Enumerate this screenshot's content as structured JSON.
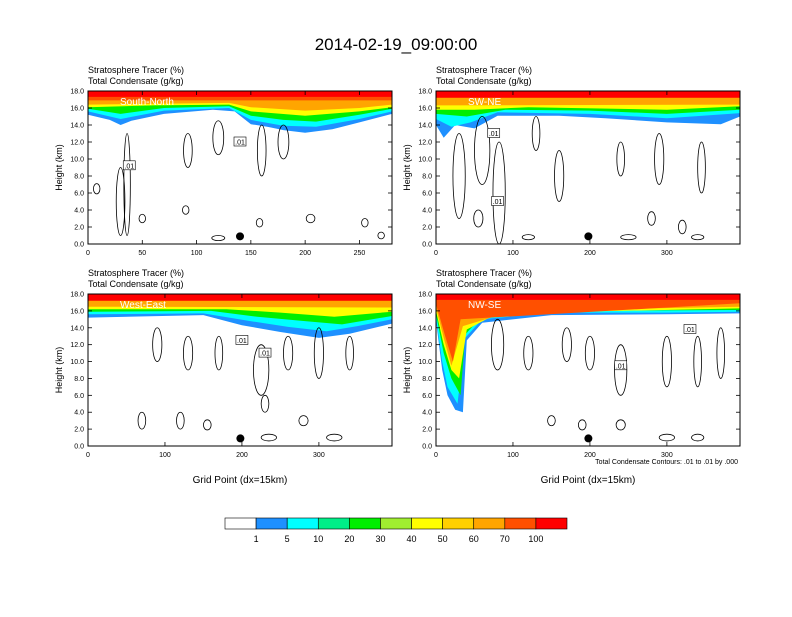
{
  "figure": {
    "title": "2014-02-19_09:00:00",
    "contour_note": "Total Condensate Contours: .01 to .01 by .000"
  },
  "colorbar": {
    "labels": [
      "1",
      "5",
      "10",
      "20",
      "30",
      "40",
      "50",
      "60",
      "70",
      "100"
    ],
    "colors": [
      "#ffffff",
      "#1e90ff",
      "#00ffff",
      "#00ee88",
      "#00ee00",
      "#a0ee30",
      "#ffff00",
      "#ffd000",
      "#ffa500",
      "#ff5000",
      "#ff0000"
    ]
  },
  "chart_data": [
    {
      "type": "heatmap",
      "panel_label": "South-North",
      "title_line1": "Stratosphere Tracer   (%)",
      "title_line2": "Total Condensate   (g/kg)",
      "ylabel": "Height (km)",
      "xlabel": "",
      "xlim": [
        0,
        280
      ],
      "ylim": [
        0,
        18
      ],
      "xticks": [
        "0",
        "50",
        "100",
        "150",
        "200",
        "250"
      ],
      "yticks": [
        "0.0",
        "2.0",
        "4.0",
        "6.0",
        "8.0",
        "10.0",
        "12.0",
        "14.0",
        "16.0",
        "18.0"
      ],
      "contour_labels": [
        ".01",
        ".01"
      ],
      "marker_x": 140
    },
    {
      "type": "heatmap",
      "panel_label": "SW-NE",
      "title_line1": "Stratosphere Tracer   (%)",
      "title_line2": "Total Condensate   (g/kg)",
      "ylabel": "Height (km)",
      "xlabel": "",
      "xlim": [
        0,
        395
      ],
      "ylim": [
        0,
        18
      ],
      "xticks": [
        "0",
        "100",
        "200",
        "300"
      ],
      "yticks": [
        "0.0",
        "2.0",
        "4.0",
        "6.0",
        "8.0",
        "10.0",
        "12.0",
        "14.0",
        "16.0",
        "18.0"
      ],
      "contour_labels": [
        ".01",
        ".01"
      ],
      "marker_x": 198
    },
    {
      "type": "heatmap",
      "panel_label": "West-East",
      "title_line1": "Stratosphere Tracer   (%)",
      "title_line2": "Total Condensate   (g/kg)",
      "ylabel": "Height (km)",
      "xlabel": "Grid Point (dx=15km)",
      "xlim": [
        0,
        395
      ],
      "ylim": [
        0,
        18
      ],
      "xticks": [
        "0",
        "100",
        "200",
        "300"
      ],
      "yticks": [
        "0.0",
        "2.0",
        "4.0",
        "6.0",
        "8.0",
        "10.0",
        "12.0",
        "14.0",
        "16.0",
        "18.0"
      ],
      "contour_labels": [
        ".01",
        ".01"
      ],
      "marker_x": 198
    },
    {
      "type": "heatmap",
      "panel_label": "NW-SE",
      "title_line1": "Stratosphere Tracer   (%)",
      "title_line2": "Total Condensate   (g/kg)",
      "ylabel": "Height (km)",
      "xlabel": "Grid Point (dx=15km)",
      "xlim": [
        0,
        395
      ],
      "ylim": [
        0,
        18
      ],
      "xticks": [
        "0",
        "100",
        "200",
        "300"
      ],
      "yticks": [
        "0.0",
        "2.0",
        "4.0",
        "6.0",
        "8.0",
        "10.0",
        "12.0",
        "14.0",
        "16.0",
        "18.0"
      ],
      "contour_labels": [
        ".01",
        ".01"
      ],
      "marker_x": 198
    }
  ]
}
